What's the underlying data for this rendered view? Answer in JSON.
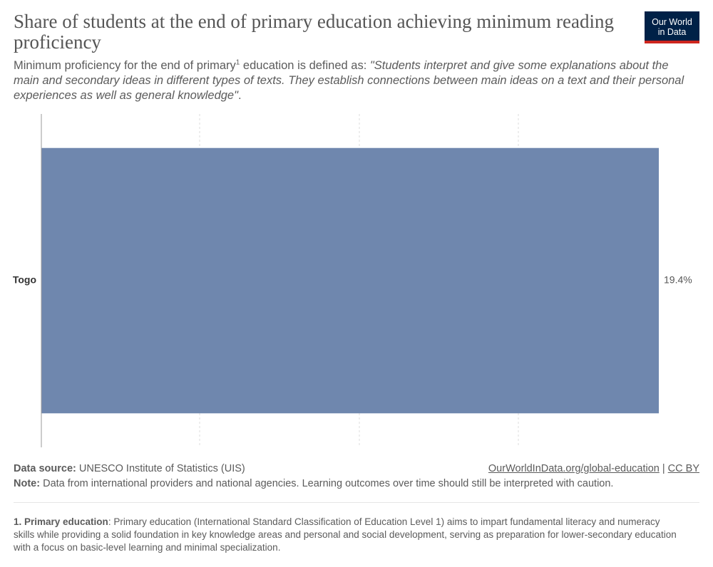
{
  "header": {
    "title": "Share of students at the end of primary education achieving minimum reading proficiency",
    "subtitle_prefix": "Minimum proficiency for the end of primary",
    "subtitle_sup": "1",
    "subtitle_mid": " education is defined as: ",
    "subtitle_quote": "\"Students interpret and give some explanations about the main and secondary ideas in different types of texts. They establish connections between main ideas on a text and their personal experiences as well as general knowledge\"",
    "subtitle_end": ".",
    "logo_line1": "Our World",
    "logo_line2": "in Data"
  },
  "chart_data": {
    "type": "bar",
    "orientation": "horizontal",
    "categories": [
      "Togo"
    ],
    "values": [
      19.4
    ],
    "value_labels": [
      "19.4%"
    ],
    "xlim": [
      0,
      19.4
    ],
    "grid": "vertical-dashed",
    "colors": {
      "bar": "#6f87ae",
      "grid": "#dddddd",
      "axis": "#999999",
      "category_label": "#333333",
      "value_label": "#555555"
    }
  },
  "footer": {
    "source_label": "Data source:",
    "source_text": " UNESCO Institute of Statistics (UIS)",
    "link_text": "OurWorldInData.org/global-education",
    "separator": " | ",
    "license": "CC BY",
    "note_label": "Note:",
    "note_text": " Data from international providers and national agencies. Learning outcomes over time should still be interpreted with caution."
  },
  "footnote": {
    "label": "1. Primary education",
    "text": ": Primary education (International Standard Classification of Education Level 1) aims to impart fundamental literacy and numeracy skills while providing a solid foundation in key knowledge areas and personal and social development, serving as preparation for lower-secondary education with a focus on basic-level learning and minimal specialization."
  }
}
